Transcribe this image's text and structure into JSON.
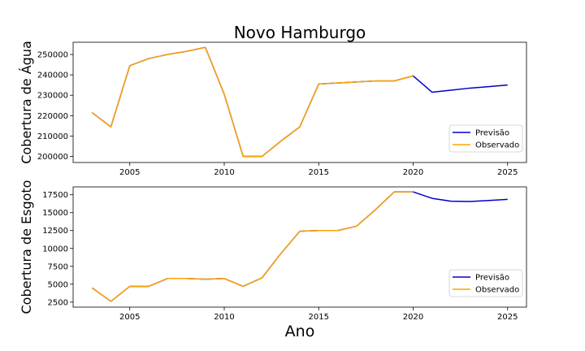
{
  "figure": {
    "title": "Novo Hamburgo",
    "xlabel": "Ano"
  },
  "chart_data": [
    {
      "type": "line",
      "ylabel": "Cobertura de Água",
      "xlim": [
        2002,
        2026
      ],
      "ylim": [
        197000,
        256000
      ],
      "xticks": [
        2005,
        2010,
        2015,
        2020,
        2025
      ],
      "xtick_labels": [
        "2005",
        "2010",
        "2015",
        "2020",
        "2025"
      ],
      "yticks": [
        200000,
        210000,
        220000,
        230000,
        240000,
        250000
      ],
      "ytick_labels": [
        "200000",
        "210000",
        "220000",
        "230000",
        "240000",
        "250000"
      ],
      "grid": false,
      "legend_position": "lower-right",
      "series": [
        {
          "name": "Previsão",
          "color": "#0000cc",
          "x": [
            2003,
            2004,
            2005,
            2006,
            2007,
            2008,
            2009,
            2010,
            2011,
            2012,
            2013,
            2014,
            2015,
            2016,
            2017,
            2018,
            2019,
            2020,
            2021,
            2022,
            2023,
            2024,
            2025
          ],
          "values": [
            221500,
            214500,
            244500,
            248000,
            250000,
            251500,
            253500,
            230500,
            200000,
            200000,
            207500,
            214500,
            235500,
            236000,
            236500,
            237000,
            237000,
            239500,
            231500,
            232500,
            233500,
            234200,
            235000
          ]
        },
        {
          "name": "Observado",
          "color": "#ffa500",
          "x": [
            2003,
            2004,
            2005,
            2006,
            2007,
            2008,
            2009,
            2010,
            2011,
            2012,
            2013,
            2014,
            2015,
            2016,
            2017,
            2018,
            2019,
            2020
          ],
          "values": [
            221500,
            214500,
            244500,
            248000,
            250000,
            251500,
            253500,
            230500,
            200000,
            200000,
            207500,
            214500,
            235500,
            236000,
            236500,
            237000,
            237000,
            239500
          ]
        }
      ]
    },
    {
      "type": "line",
      "ylabel": "Cobertura de Esgoto",
      "xlim": [
        2002,
        2026
      ],
      "ylim": [
        1800,
        18600
      ],
      "xticks": [
        2005,
        2010,
        2015,
        2020,
        2025
      ],
      "xtick_labels": [
        "2005",
        "2010",
        "2015",
        "2020",
        "2025"
      ],
      "yticks": [
        2500,
        5000,
        7500,
        10000,
        12500,
        15000,
        17500
      ],
      "ytick_labels": [
        "2500",
        "5000",
        "7500",
        "10000",
        "12500",
        "15000",
        "17500"
      ],
      "grid": false,
      "legend_position": "lower-right",
      "series": [
        {
          "name": "Previsão",
          "color": "#0000cc",
          "x": [
            2003,
            2004,
            2005,
            2006,
            2007,
            2008,
            2009,
            2010,
            2011,
            2012,
            2013,
            2014,
            2015,
            2016,
            2017,
            2018,
            2019,
            2020,
            2021,
            2022,
            2023,
            2024,
            2025
          ],
          "values": [
            4500,
            2600,
            4700,
            4700,
            5800,
            5800,
            5700,
            5800,
            4700,
            5900,
            9300,
            12400,
            12500,
            12500,
            13100,
            15400,
            17900,
            17900,
            17000,
            16600,
            16550,
            16700,
            16850
          ]
        },
        {
          "name": "Observado",
          "color": "#ffa500",
          "x": [
            2003,
            2004,
            2005,
            2006,
            2007,
            2008,
            2009,
            2010,
            2011,
            2012,
            2013,
            2014,
            2015,
            2016,
            2017,
            2018,
            2019,
            2020
          ],
          "values": [
            4500,
            2600,
            4700,
            4700,
            5800,
            5800,
            5700,
            5800,
            4700,
            5900,
            9300,
            12400,
            12500,
            12500,
            13100,
            15400,
            17900,
            17900
          ]
        }
      ]
    }
  ]
}
